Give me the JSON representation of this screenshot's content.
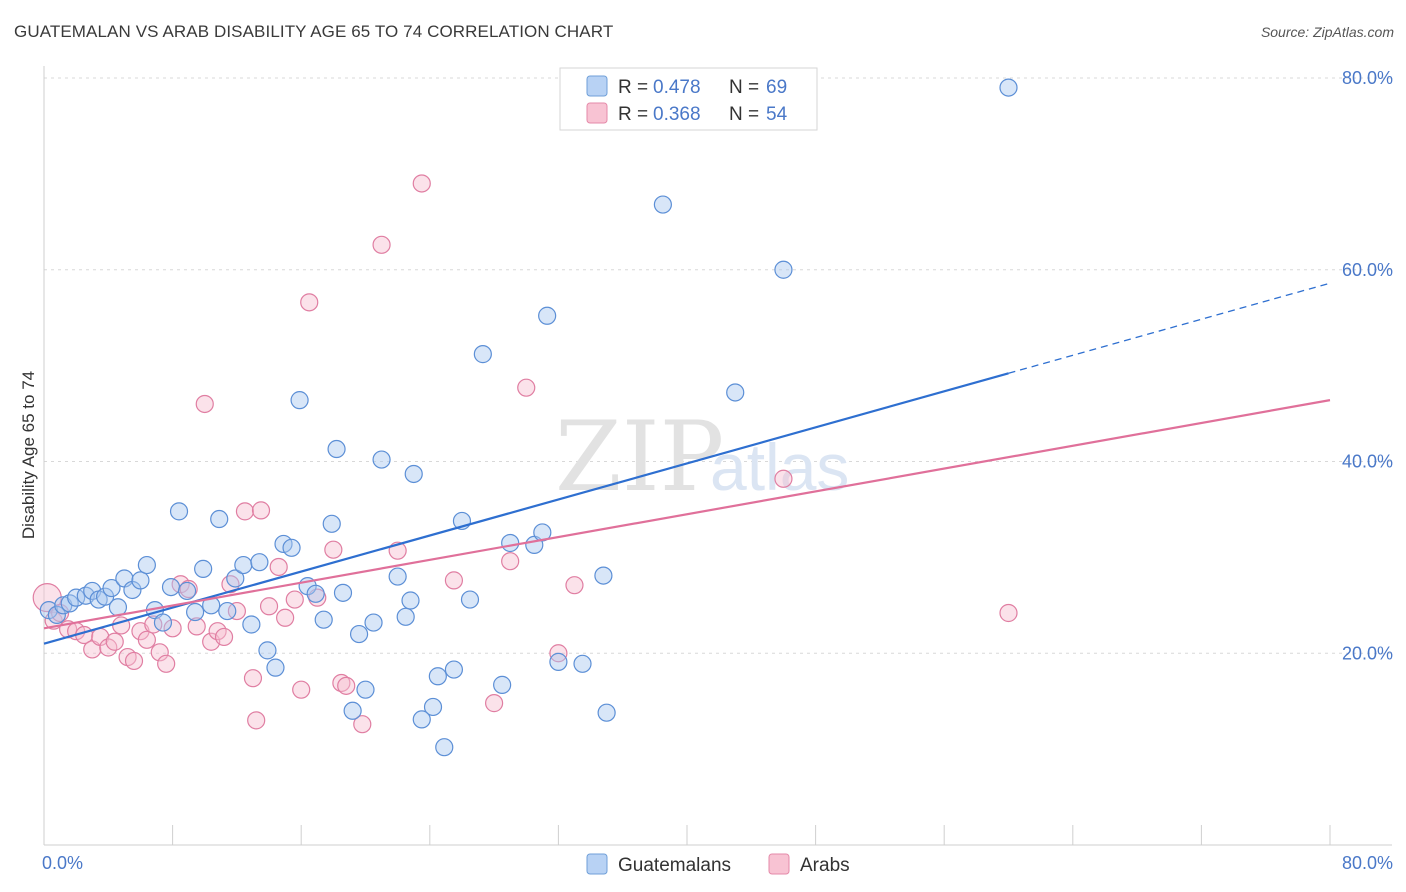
{
  "header": {
    "title": "GUATEMALAN VS ARAB DISABILITY AGE 65 TO 74 CORRELATION CHART",
    "source": "Source: ZipAtlas.com"
  },
  "legend": {
    "r_label": "R =",
    "n_label": "N =",
    "items": [
      {
        "r": "0.478",
        "n": "69",
        "fill": "#b8d2f4",
        "stroke": "#6f9fd8"
      },
      {
        "r": "0.368",
        "n": "54",
        "fill": "#f8c3d3",
        "stroke": "#e58aa9"
      }
    ]
  },
  "watermark": {
    "zip": "ZIP",
    "atlas": "atlas"
  },
  "colors": {
    "blue_fill": "#a9c8ef",
    "blue_stroke": "#5c8fd6",
    "blue_line": "#2e6fd0",
    "pink_fill": "#f6bfd0",
    "pink_stroke": "#e07ea2",
    "pink_line": "#e0709a",
    "grid": "#d8d8d8",
    "axis_label": "#4a78c8"
  },
  "chart_data": {
    "type": "scatter",
    "title": "GUATEMALAN VS ARAB DISABILITY AGE 65 TO 74 CORRELATION CHART",
    "xlabel": "",
    "ylabel": "Disability Age 65 to 74",
    "xlim": [
      0,
      80
    ],
    "ylim": [
      0,
      80
    ],
    "x_tick_labels": [
      "0.0%",
      "80.0%"
    ],
    "y_ticks": [
      20,
      40,
      60,
      80
    ],
    "y_tick_labels": [
      "20.0%",
      "40.0%",
      "60.0%",
      "80.0%"
    ],
    "grid": true,
    "legend_position": "bottom",
    "series": [
      {
        "name": "Guatemalans",
        "r": 0.478,
        "n": 69,
        "trend": {
          "x0": 0,
          "y0": 21.0,
          "x1": 60,
          "y1": 49.2,
          "dash_to_x": 80,
          "dash_to_y": 58.6
        },
        "points": [
          [
            0.3,
            24.5
          ],
          [
            0.8,
            24.0
          ],
          [
            1.2,
            25.0
          ],
          [
            1.6,
            25.2
          ],
          [
            2.0,
            25.8
          ],
          [
            2.6,
            26.0
          ],
          [
            3.0,
            26.5
          ],
          [
            3.4,
            25.6
          ],
          [
            3.8,
            25.9
          ],
          [
            4.2,
            26.8
          ],
          [
            4.6,
            24.8
          ],
          [
            5.0,
            27.8
          ],
          [
            5.5,
            26.6
          ],
          [
            6.0,
            27.6
          ],
          [
            6.4,
            29.2
          ],
          [
            6.9,
            24.5
          ],
          [
            7.4,
            23.2
          ],
          [
            7.9,
            26.9
          ],
          [
            8.4,
            34.8
          ],
          [
            8.9,
            26.5
          ],
          [
            9.4,
            24.3
          ],
          [
            9.9,
            28.8
          ],
          [
            10.4,
            25.0
          ],
          [
            10.9,
            34.0
          ],
          [
            11.4,
            24.4
          ],
          [
            11.9,
            27.8
          ],
          [
            12.4,
            29.2
          ],
          [
            12.9,
            23.0
          ],
          [
            13.4,
            29.5
          ],
          [
            13.9,
            20.3
          ],
          [
            14.4,
            18.5
          ],
          [
            14.9,
            31.4
          ],
          [
            15.4,
            31.0
          ],
          [
            15.9,
            46.4
          ],
          [
            16.4,
            27.0
          ],
          [
            16.9,
            26.2
          ],
          [
            17.4,
            23.5
          ],
          [
            17.9,
            33.5
          ],
          [
            18.2,
            41.3
          ],
          [
            18.6,
            26.3
          ],
          [
            19.2,
            14.0
          ],
          [
            19.6,
            22.0
          ],
          [
            20.0,
            16.2
          ],
          [
            20.5,
            23.2
          ],
          [
            21.0,
            40.2
          ],
          [
            22.0,
            28.0
          ],
          [
            22.5,
            23.8
          ],
          [
            22.8,
            25.5
          ],
          [
            23.0,
            38.7
          ],
          [
            23.5,
            13.1
          ],
          [
            24.2,
            14.4
          ],
          [
            24.5,
            17.6
          ],
          [
            24.9,
            10.2
          ],
          [
            25.5,
            18.3
          ],
          [
            26.0,
            33.8
          ],
          [
            26.5,
            25.6
          ],
          [
            27.3,
            51.2
          ],
          [
            28.5,
            16.7
          ],
          [
            29.0,
            31.5
          ],
          [
            30.5,
            31.3
          ],
          [
            31.0,
            32.6
          ],
          [
            31.3,
            55.2
          ],
          [
            32.0,
            19.1
          ],
          [
            33.5,
            18.9
          ],
          [
            34.8,
            28.1
          ],
          [
            35.0,
            13.8
          ],
          [
            38.5,
            66.8
          ],
          [
            43.0,
            47.2
          ],
          [
            46.0,
            60.0
          ],
          [
            60.0,
            79.0
          ]
        ]
      },
      {
        "name": "Arabs",
        "r": 0.368,
        "n": 54,
        "trend": {
          "x0": 0,
          "y0": 22.6,
          "x1": 80,
          "y1": 46.4
        },
        "points": [
          [
            0.2,
            25.8
          ],
          [
            0.6,
            23.4
          ],
          [
            1.0,
            24.2
          ],
          [
            1.5,
            22.5
          ],
          [
            2.0,
            22.3
          ],
          [
            2.5,
            21.9
          ],
          [
            3.0,
            20.4
          ],
          [
            3.5,
            21.7
          ],
          [
            4.0,
            20.6
          ],
          [
            4.4,
            21.2
          ],
          [
            4.8,
            22.9
          ],
          [
            5.2,
            19.6
          ],
          [
            5.6,
            19.2
          ],
          [
            6.0,
            22.3
          ],
          [
            6.4,
            21.4
          ],
          [
            6.8,
            23.0
          ],
          [
            7.2,
            20.1
          ],
          [
            7.6,
            18.9
          ],
          [
            8.0,
            22.6
          ],
          [
            8.5,
            27.2
          ],
          [
            9.0,
            26.7
          ],
          [
            9.5,
            22.8
          ],
          [
            10.0,
            46.0
          ],
          [
            10.4,
            21.2
          ],
          [
            10.8,
            22.3
          ],
          [
            11.2,
            21.7
          ],
          [
            11.6,
            27.2
          ],
          [
            12.0,
            24.4
          ],
          [
            12.5,
            34.8
          ],
          [
            13.0,
            17.4
          ],
          [
            13.2,
            13.0
          ],
          [
            13.5,
            34.9
          ],
          [
            14.0,
            24.9
          ],
          [
            14.6,
            29.0
          ],
          [
            15.0,
            23.7
          ],
          [
            15.6,
            25.6
          ],
          [
            16.0,
            16.2
          ],
          [
            16.5,
            56.6
          ],
          [
            17.0,
            25.8
          ],
          [
            18.0,
            30.8
          ],
          [
            18.5,
            16.9
          ],
          [
            18.8,
            16.6
          ],
          [
            19.8,
            12.6
          ],
          [
            21.0,
            62.6
          ],
          [
            22.0,
            30.7
          ],
          [
            23.5,
            69.0
          ],
          [
            25.5,
            27.6
          ],
          [
            28.0,
            14.8
          ],
          [
            29.0,
            29.6
          ],
          [
            30.0,
            47.7
          ],
          [
            32.0,
            20.0
          ],
          [
            33.0,
            27.1
          ],
          [
            46.0,
            38.2
          ],
          [
            60.0,
            24.2
          ]
        ]
      }
    ]
  },
  "bottom_legend": {
    "items": [
      {
        "label": "Guatemalans",
        "fill": "#b8d2f4",
        "stroke": "#6f9fd8"
      },
      {
        "label": "Arabs",
        "fill": "#f8c3d3",
        "stroke": "#e58aa9"
      }
    ]
  }
}
